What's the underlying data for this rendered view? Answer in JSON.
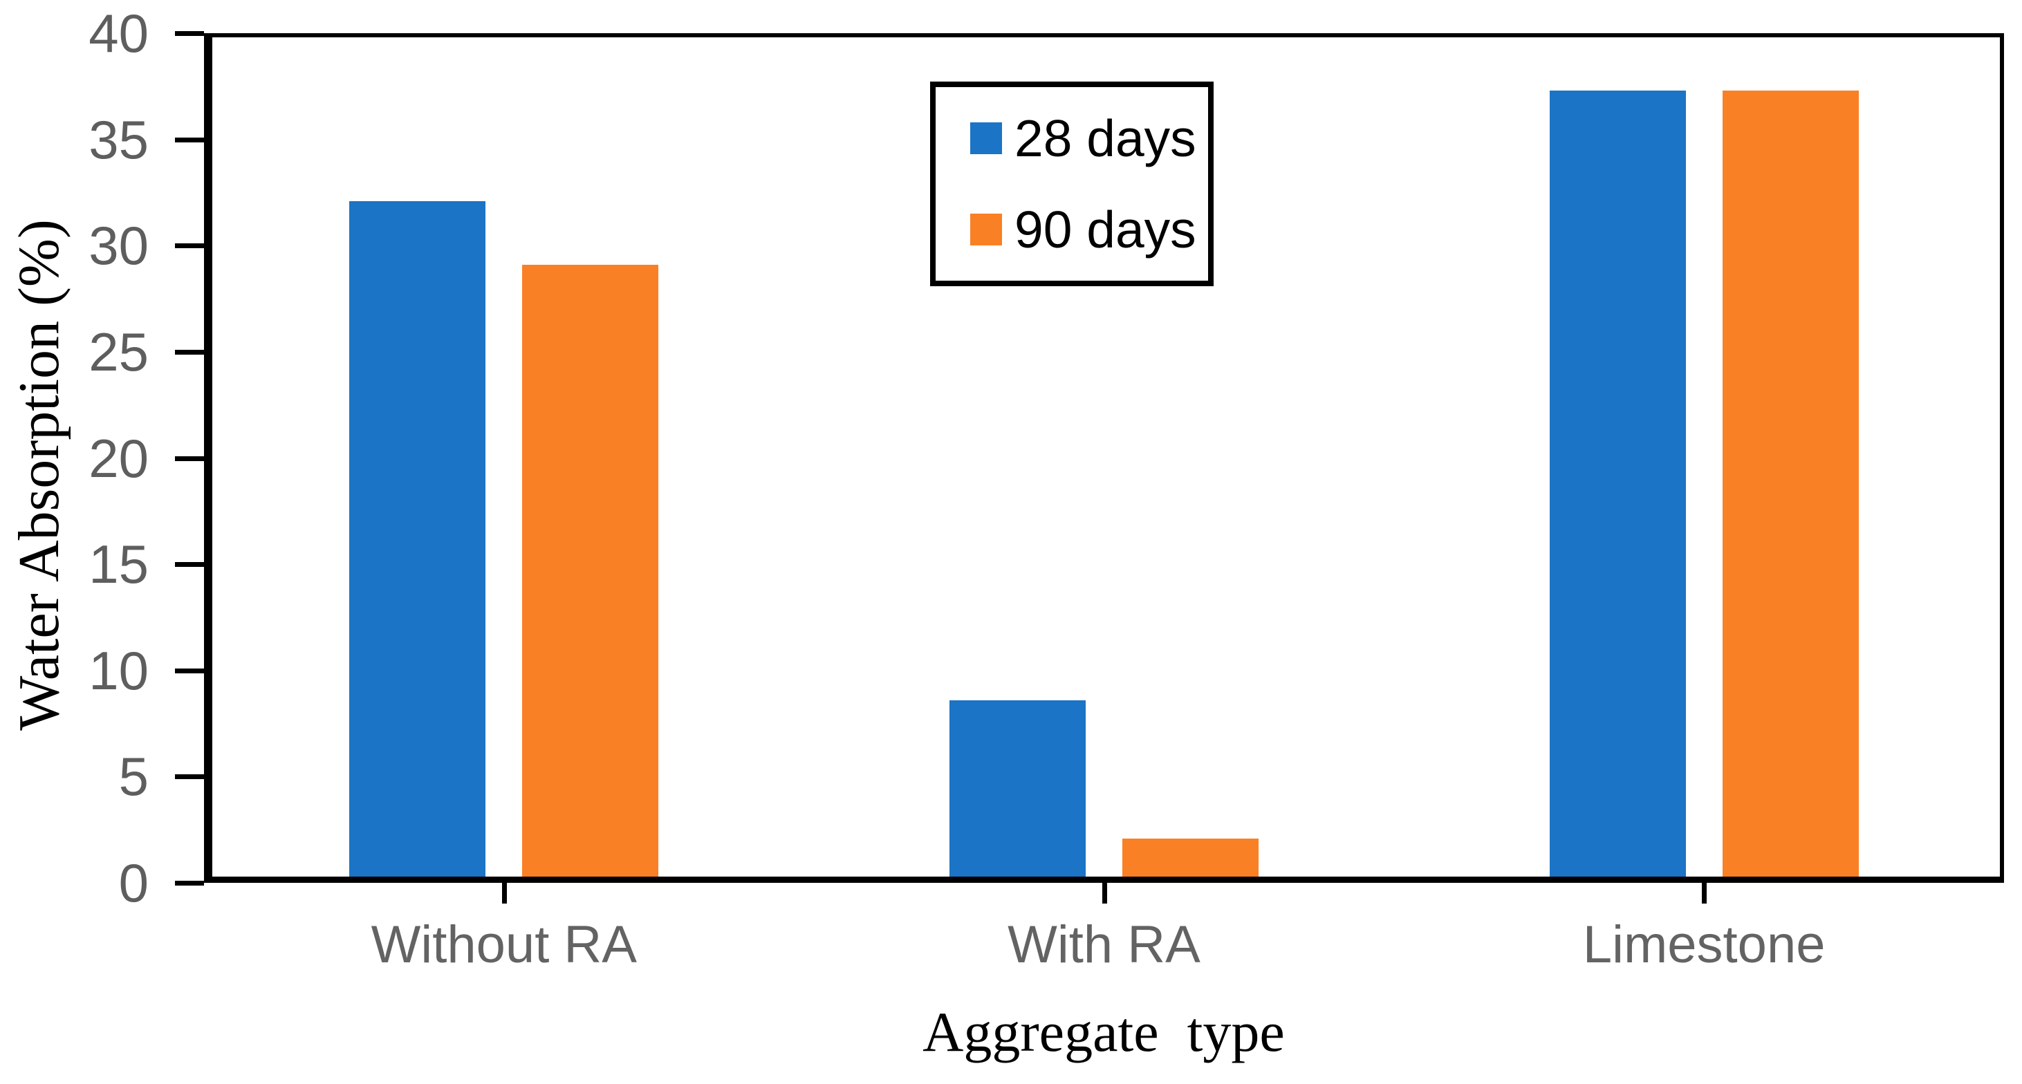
{
  "chart_data": {
    "type": "bar",
    "title": "",
    "categories": [
      "Without RA",
      "With RA",
      "Limestone"
    ],
    "series": [
      {
        "name": "28 days",
        "color": "#1B74C5",
        "values": [
          31.8,
          8.3,
          37.0
        ]
      },
      {
        "name": "90 days",
        "color": "#FA8025",
        "values": [
          28.8,
          1.8,
          37.0
        ]
      }
    ],
    "xlabel": "Aggregate  type",
    "ylabel": "Water Absorption (%)",
    "ylim": [
      0,
      40
    ],
    "ytick_step": 5,
    "yticks": [
      0,
      5,
      10,
      15,
      20,
      25,
      30,
      35,
      40
    ],
    "grid": false,
    "legend_position": "top-center-inside",
    "axis_color": "#000000",
    "tick_label_color": "#5e5e5e"
  }
}
